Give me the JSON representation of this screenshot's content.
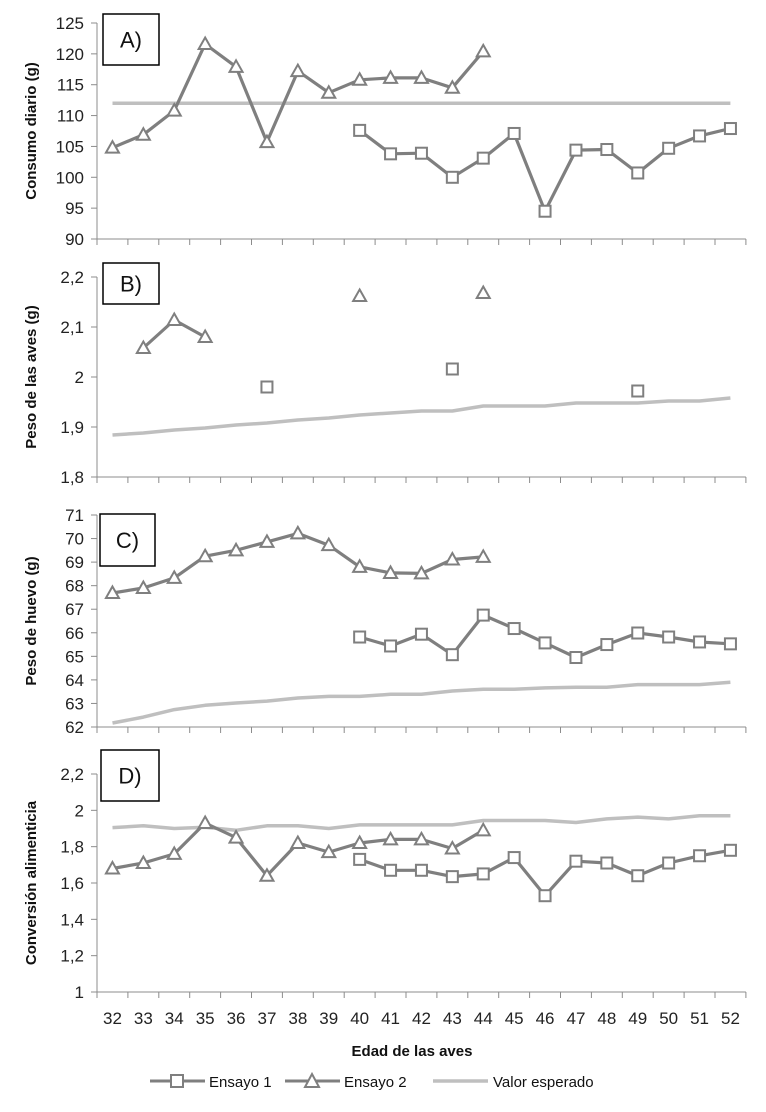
{
  "chart_data": {
    "type": "line",
    "x": [
      32,
      33,
      34,
      35,
      36,
      37,
      38,
      39,
      40,
      41,
      42,
      43,
      44,
      45,
      46,
      47,
      48,
      49,
      50,
      51,
      52
    ],
    "xlabel": "Edad de las aves",
    "legend": {
      "position": "bottom",
      "entries": [
        "Ensayo 1",
        "Ensayo 2",
        "Valor esperado"
      ]
    },
    "colors": {
      "ensayo1": "#7f7f7f",
      "ensayo2": "#7f7f7f",
      "esperado": "#bfbfbf"
    },
    "panels": [
      {
        "label": "A)",
        "ylabel": "Consumo diario (g)",
        "ylim": [
          90,
          125
        ],
        "yticks": [
          "90",
          "95",
          "100",
          "105",
          "110",
          "115",
          "120",
          "125"
        ],
        "ytick_values": [
          90,
          95,
          100,
          105,
          110,
          115,
          120,
          125
        ],
        "series": [
          {
            "name": "Ensayo 1",
            "marker": "square",
            "values": [
              null,
              null,
              null,
              null,
              null,
              null,
              null,
              null,
              107.6,
              103.8,
              103.9,
              100.0,
              103.1,
              107.1,
              94.5,
              104.4,
              104.5,
              100.7,
              104.7,
              106.7,
              107.9
            ]
          },
          {
            "name": "Ensayo 2",
            "marker": "triangle",
            "values": [
              104.8,
              106.9,
              110.8,
              121.6,
              117.9,
              105.7,
              117.2,
              113.7,
              115.8,
              116.1,
              116.1,
              114.5,
              120.4,
              null,
              null,
              null,
              null,
              null,
              null,
              null,
              null
            ]
          },
          {
            "name": "Valor esperado",
            "marker": "none",
            "values": [
              112,
              112,
              112,
              112,
              112,
              112,
              112,
              112,
              112,
              112,
              112,
              112,
              112,
              112,
              112,
              112,
              112,
              112,
              112,
              112,
              112
            ]
          }
        ]
      },
      {
        "label": "B)",
        "ylabel": "Peso de las aves (g)",
        "ylim": [
          1.8,
          2.2
        ],
        "yticks": [
          "1,8",
          "1,9",
          "2",
          "2,1",
          "2,2"
        ],
        "ytick_values": [
          1.8,
          1.9,
          2.0,
          2.1,
          2.2
        ],
        "series": [
          {
            "name": "Ensayo 1",
            "marker": "square",
            "values": [
              null,
              null,
              null,
              null,
              null,
              1.98,
              null,
              null,
              null,
              null,
              null,
              2.016,
              null,
              null,
              null,
              null,
              null,
              1.972,
              null,
              null,
              null
            ]
          },
          {
            "name": "Ensayo 2",
            "marker": "triangle",
            "values": [
              null,
              2.058,
              2.114,
              2.08,
              null,
              null,
              null,
              null,
              2.162,
              null,
              null,
              null,
              2.168,
              null,
              null,
              null,
              null,
              null,
              null,
              null,
              null
            ]
          },
          {
            "name": "Valor esperado",
            "marker": "none",
            "values": [
              1.884,
              1.888,
              1.894,
              1.898,
              1.904,
              1.908,
              1.914,
              1.918,
              1.924,
              1.928,
              1.932,
              1.932,
              1.942,
              1.942,
              1.942,
              1.948,
              1.948,
              1.948,
              1.952,
              1.952,
              1.958
            ]
          }
        ]
      },
      {
        "label": "C)",
        "ylabel": "Peso de huevo (g)",
        "ylim": [
          62,
          71
        ],
        "yticks": [
          "62",
          "63",
          "64",
          "65",
          "66",
          "67",
          "68",
          "69",
          "70",
          "71"
        ],
        "ytick_values": [
          62,
          63,
          64,
          65,
          66,
          67,
          68,
          69,
          70,
          71
        ],
        "series": [
          {
            "name": "Ensayo 1",
            "marker": "square",
            "values": [
              null,
              null,
              null,
              null,
              null,
              null,
              null,
              null,
              65.82,
              65.44,
              65.94,
              65.07,
              66.75,
              66.18,
              65.57,
              64.95,
              65.5,
              65.99,
              65.82,
              65.61,
              65.53
            ]
          },
          {
            "name": "Ensayo 2",
            "marker": "triangle",
            "values": [
              67.69,
              67.9,
              68.33,
              69.25,
              69.5,
              69.86,
              70.22,
              69.72,
              68.8,
              68.54,
              68.52,
              69.11,
              69.22,
              null,
              null,
              null,
              null,
              null,
              null,
              null,
              null
            ]
          },
          {
            "name": "Valor esperado",
            "marker": "none",
            "values": [
              62.17,
              62.42,
              62.74,
              62.92,
              63.02,
              63.1,
              63.23,
              63.3,
              63.3,
              63.39,
              63.39,
              63.53,
              63.6,
              63.6,
              63.66,
              63.69,
              63.69,
              63.8,
              63.8,
              63.8,
              63.9
            ]
          }
        ]
      },
      {
        "label": "D)",
        "ylabel": "Conversión alimenticia",
        "ylim": [
          1.0,
          2.2
        ],
        "yticks": [
          "1",
          "1,2",
          "1,4",
          "1,6",
          "1,8",
          "2",
          "2,2"
        ],
        "ytick_values": [
          1.0,
          1.2,
          1.4,
          1.6,
          1.8,
          2.0,
          2.2
        ],
        "series": [
          {
            "name": "Ensayo 1",
            "marker": "square",
            "values": [
              null,
              null,
              null,
              null,
              null,
              null,
              null,
              null,
              1.73,
              1.67,
              1.67,
              1.635,
              1.65,
              1.74,
              1.53,
              1.72,
              1.71,
              1.64,
              1.71,
              1.75,
              1.78
            ]
          },
          {
            "name": "Ensayo 2",
            "marker": "triangle",
            "values": [
              1.68,
              1.71,
              1.76,
              1.93,
              1.85,
              1.64,
              1.82,
              1.77,
              1.82,
              1.84,
              1.84,
              1.79,
              1.89,
              null,
              null,
              null,
              null,
              null,
              null,
              null,
              null
            ]
          },
          {
            "name": "Valor esperado",
            "marker": "none",
            "values": [
              1.905,
              1.915,
              1.9,
              1.907,
              1.89,
              1.915,
              1.915,
              1.9,
              1.92,
              1.92,
              1.92,
              1.92,
              1.944,
              1.944,
              1.944,
              1.933,
              1.953,
              1.963,
              1.953,
              1.97,
              1.97
            ]
          }
        ]
      }
    ]
  }
}
